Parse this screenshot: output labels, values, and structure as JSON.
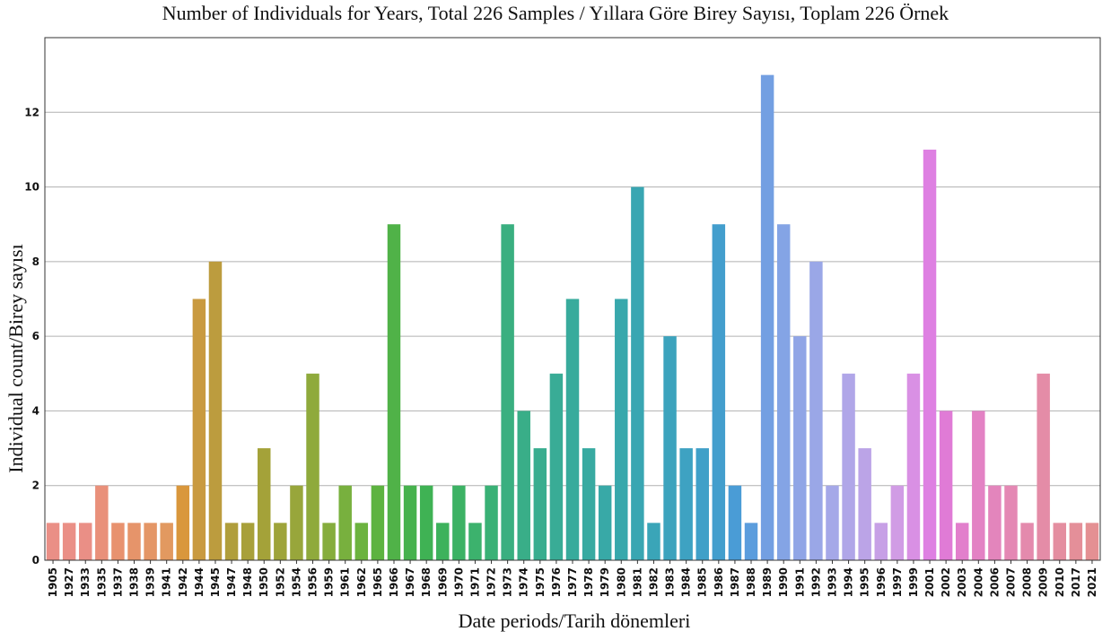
{
  "chart_data": {
    "type": "bar",
    "title": "Number of Individuals for Years, Total 226 Samples / Yıllara Göre Birey Sayısı, Toplam 226 Örnek",
    "xlabel": "Date periods/Tarih dönemleri",
    "ylabel": "Individual count/Birey sayısı",
    "ylim": [
      0,
      14
    ],
    "yticks": [
      0,
      2,
      4,
      6,
      8,
      10,
      12
    ],
    "grid": "horizontal",
    "categories": [
      "1905",
      "1927",
      "1933",
      "1935",
      "1937",
      "1938",
      "1939",
      "1941",
      "1942",
      "1944",
      "1945",
      "1947",
      "1948",
      "1950",
      "1952",
      "1954",
      "1956",
      "1959",
      "1961",
      "1962",
      "1965",
      "1966",
      "1967",
      "1968",
      "1969",
      "1970",
      "1971",
      "1972",
      "1973",
      "1974",
      "1975",
      "1976",
      "1977",
      "1978",
      "1979",
      "1980",
      "1981",
      "1982",
      "1983",
      "1984",
      "1985",
      "1986",
      "1987",
      "1988",
      "1989",
      "1990",
      "1991",
      "1992",
      "1993",
      "1994",
      "1995",
      "1996",
      "1997",
      "1999",
      "2001",
      "2002",
      "2003",
      "2004",
      "2006",
      "2007",
      "2008",
      "2009",
      "2010",
      "2017",
      "2021"
    ],
    "values": [
      1,
      1,
      1,
      2,
      1,
      1,
      1,
      1,
      2,
      7,
      8,
      1,
      1,
      3,
      1,
      2,
      5,
      1,
      2,
      1,
      2,
      9,
      2,
      2,
      1,
      2,
      1,
      2,
      9,
      4,
      3,
      5,
      7,
      3,
      2,
      7,
      10,
      1,
      6,
      3,
      3,
      9,
      2,
      1,
      13,
      9,
      6,
      8,
      2,
      5,
      3,
      1,
      2,
      5,
      11,
      4,
      1,
      4,
      2,
      2,
      1,
      5,
      1,
      1,
      1
    ],
    "colors": [
      "#ea8f86",
      "#ea8f86",
      "#ea8f86",
      "#e9907a",
      "#e8926f",
      "#e6946a",
      "#e49666",
      "#e29960",
      "#d9973c",
      "#c99a40",
      "#bc9c3e",
      "#b09e3c",
      "#a8a03a",
      "#a4a239",
      "#9ea43a",
      "#98a63b",
      "#8faa3c",
      "#86ad3d",
      "#78b03e",
      "#6cb33f",
      "#5db340",
      "#50b248",
      "#46b24d",
      "#3fb254",
      "#3db25c",
      "#3cb264",
      "#3cb26d",
      "#3ab176",
      "#3aaf80",
      "#39ae88",
      "#39ad8f",
      "#39ac96",
      "#38ab9c",
      "#38aaa1",
      "#38a9a7",
      "#38a8ac",
      "#39a6b2",
      "#3aa5b8",
      "#3ca3bd",
      "#3ea2c2",
      "#40a0c8",
      "#439ecd",
      "#4a9cd6",
      "#5b9ddd",
      "#739fe2",
      "#84a4e5",
      "#90a5e6",
      "#9aa7e7",
      "#a5a8e8",
      "#b0a6e8",
      "#bba4e7",
      "#c7a0e6",
      "#d19ce5",
      "#d990e4",
      "#de80e2",
      "#e07bd6",
      "#e27fcc",
      "#e382c4",
      "#e385bc",
      "#e488b4",
      "#e48aad",
      "#e48ca7",
      "#e48ea0",
      "#e48f99",
      "#e49093"
    ]
  }
}
